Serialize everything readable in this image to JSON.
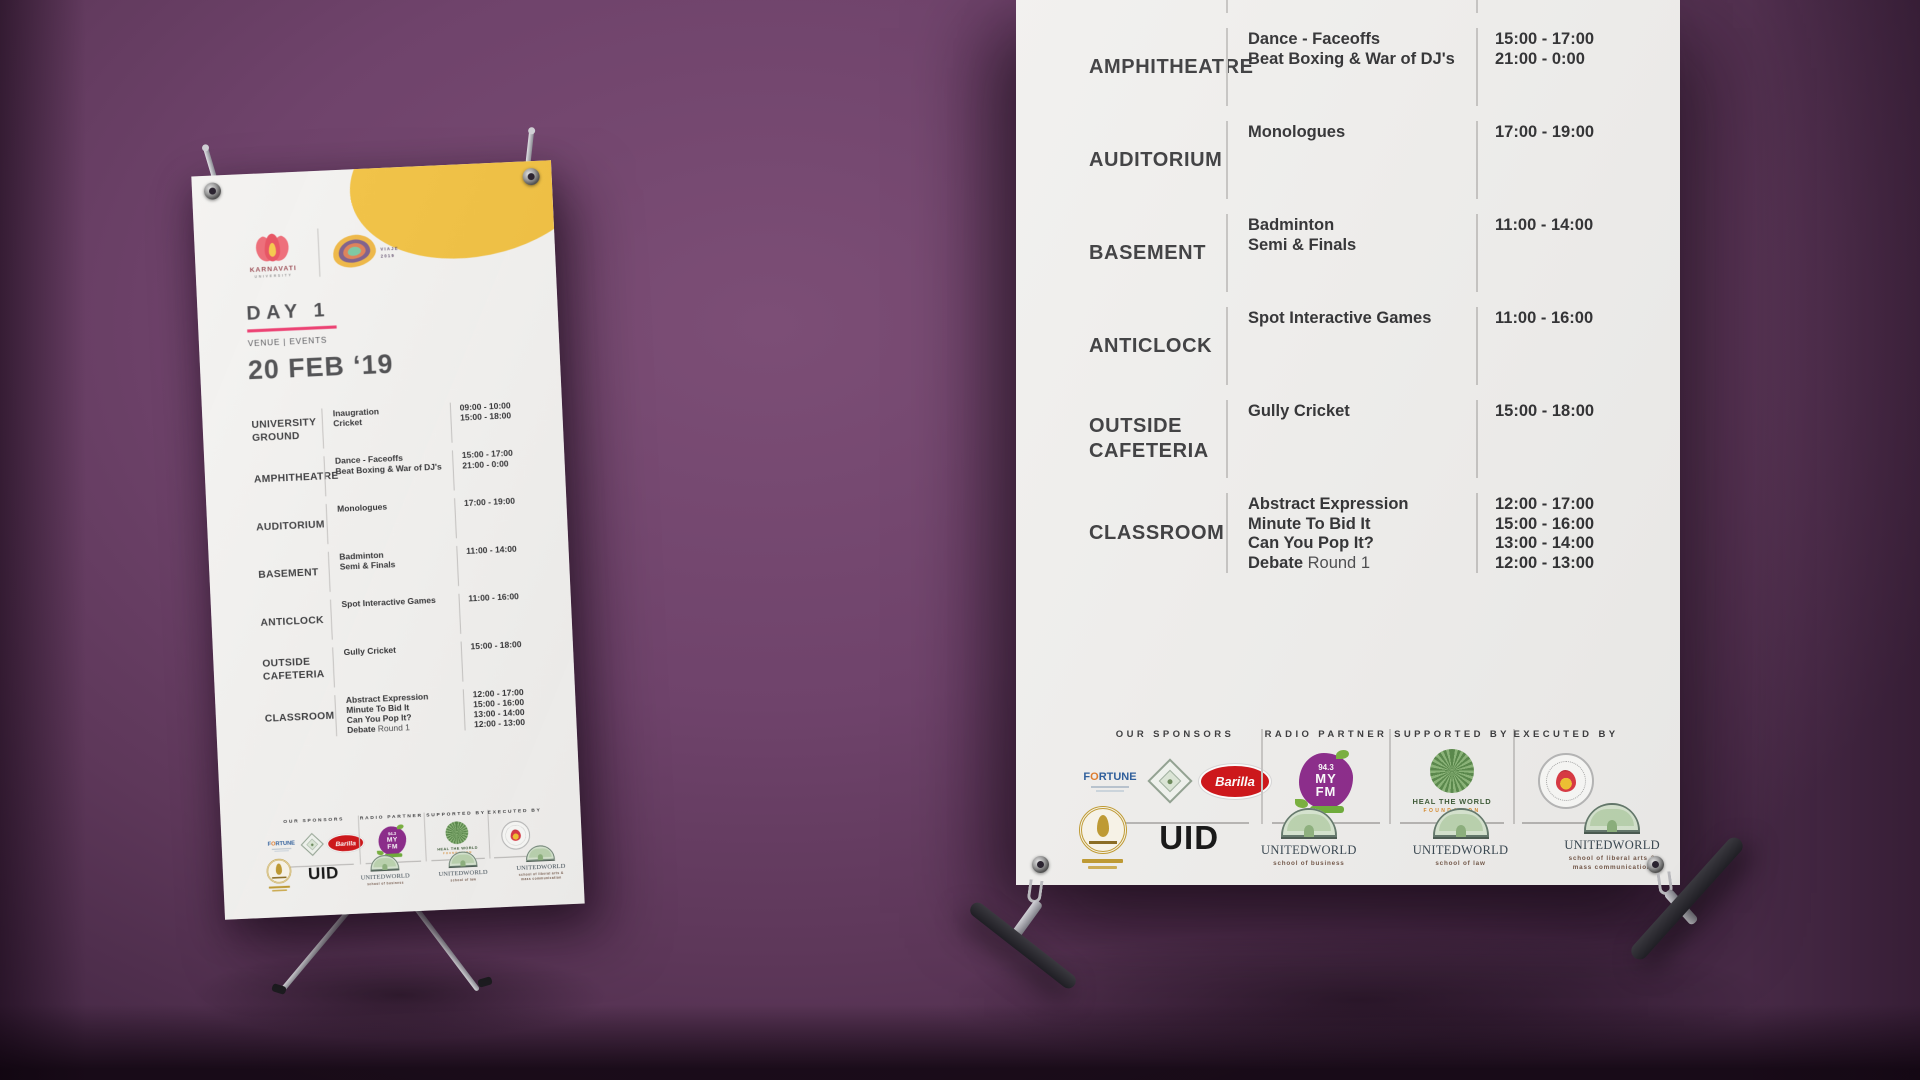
{
  "scene": {
    "background_color": "#6f436b",
    "banner_color": "#f3f2f0",
    "accent_pink": "#ee3a6e",
    "accent_yellow": "#f3c242"
  },
  "brand": {
    "university_logo": {
      "name": "KARNAVATI",
      "subtitle": "UNIVERSITY"
    },
    "event_logo": {
      "name": "VIAJE",
      "year": "2019"
    }
  },
  "header": {
    "day_label": "DAY 1",
    "subtitle": "VENUE | EVENTS",
    "date": "20 FEB ‘19"
  },
  "schedule": {
    "rows": [
      {
        "venue": [
          "UNIVERSITY",
          "GROUND"
        ],
        "events": [
          "Inaugration",
          "Cricket"
        ],
        "times": [
          "09:00 - 10:00",
          "15:00 - 18:00"
        ]
      },
      {
        "venue": [
          "AMPHITHEATRE"
        ],
        "events": [
          "Dance - Faceoffs",
          "Beat Boxing & War of DJ's"
        ],
        "times": [
          "15:00 - 17:00",
          "21:00 - 0:00"
        ]
      },
      {
        "venue": [
          "AUDITORIUM"
        ],
        "events": [
          "Monologues"
        ],
        "times": [
          "17:00 - 19:00"
        ]
      },
      {
        "venue": [
          "BASEMENT"
        ],
        "events": [
          "Badminton",
          "Semi & Finals"
        ],
        "times": [
          "11:00 - 14:00"
        ]
      },
      {
        "venue": [
          "ANTICLOCK"
        ],
        "events": [
          "Spot Interactive Games"
        ],
        "times": [
          "11:00 - 16:00"
        ]
      },
      {
        "venue": [
          "OUTSIDE",
          "CAFETERIA"
        ],
        "events": [
          "Gully Cricket"
        ],
        "times": [
          "15:00 - 18:00"
        ]
      },
      {
        "venue": [
          "CLASSROOM"
        ],
        "events": [
          "Abstract Expression",
          "Minute To Bid It",
          "Can You Pop It?",
          {
            "bold": "Debate",
            "regular": "Round 1"
          }
        ],
        "times": [
          "12:00 - 17:00",
          "15:00 - 16:00",
          "13:00 - 14:00",
          "12:00 - 13:00"
        ]
      }
    ]
  },
  "sponsors": {
    "groups": [
      {
        "label": "OUR SPONSORS",
        "logos": [
          "fortune-logo",
          "emblem-logo",
          "barilla-logo"
        ]
      },
      {
        "label": "RADIO PARTNER",
        "logos": [
          "my-fm-logo"
        ]
      },
      {
        "label": "SUPPORTED BY",
        "logos": [
          "heal-the-world-logo"
        ]
      },
      {
        "label": "EXECUTED BY",
        "logos": [
          "karnavati-seal-logo"
        ]
      }
    ],
    "logo_text": {
      "fortune": "FORTUNE",
      "barilla": "Barilla",
      "my_fm": {
        "num": "94.3",
        "line1": "MY",
        "line2": "FM"
      },
      "heal_the_world": {
        "name": "HEAL THE WORLD",
        "sub": "FOUNDATION"
      }
    }
  },
  "footer": {
    "logos": [
      {
        "type": "crest",
        "name": "karnavati-crest-logo"
      },
      {
        "type": "uid",
        "name": "uid-logo",
        "text": "UID"
      },
      {
        "type": "unitedworld",
        "name": "unitedworld-business-logo",
        "title": "UNITEDWORLD",
        "sub": [
          "school of business"
        ]
      },
      {
        "type": "unitedworld",
        "name": "unitedworld-law-logo",
        "title": "UNITEDWORLD",
        "sub": [
          "school of law"
        ]
      },
      {
        "type": "unitedworld",
        "name": "unitedworld-liberal-arts-logo",
        "title": "UNITEDWORLD",
        "sub": [
          "school of liberal arts &",
          "mass communication"
        ]
      }
    ]
  }
}
